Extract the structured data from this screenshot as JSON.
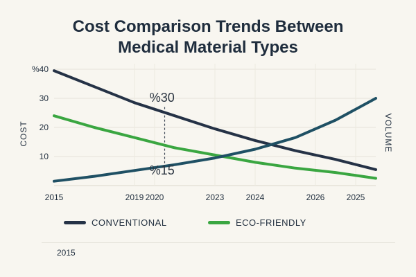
{
  "chart_data": {
    "type": "line",
    "title_lines": [
      "Cost Comparison Trends Between",
      "Medical Material Types"
    ],
    "ylabel": "COST",
    "ylabel_right": "VOLUME",
    "y_ticks": [
      {
        "value": 40,
        "label": "%40"
      },
      {
        "value": 30,
        "label": "30"
      },
      {
        "value": 20,
        "label": "20"
      },
      {
        "value": 10,
        "label": "10"
      }
    ],
    "ylim": [
      0,
      40
    ],
    "x_tick_labels": [
      "2015",
      "2019",
      "2020",
      "2023",
      "2024",
      "2026",
      "2025"
    ],
    "x_tick_positions": [
      0,
      4,
      5,
      8,
      10,
      13,
      15
    ],
    "xlim": [
      0,
      16
    ],
    "series": [
      {
        "name": "CONVENTIONAL",
        "color": "#253246",
        "x": [
          0,
          2,
          4,
          6,
          8,
          10,
          12,
          14,
          16
        ],
        "values": [
          39.5,
          34.0,
          28.5,
          24.0,
          19.5,
          15.5,
          12.0,
          9.0,
          5.5
        ]
      },
      {
        "name": "ECO-FRIENDLY",
        "color": "#3aa641",
        "x": [
          0,
          2,
          4,
          6,
          8,
          10,
          12,
          14,
          16
        ],
        "values": [
          24.0,
          20.0,
          16.5,
          13.0,
          10.5,
          8.0,
          6.0,
          4.5,
          2.5
        ]
      },
      {
        "name": "VOLUME",
        "color": "#1f5064",
        "x": [
          0,
          2,
          4,
          6,
          8,
          10,
          12,
          14,
          16
        ],
        "values": [
          1.5,
          3.2,
          5.2,
          7.2,
          9.5,
          12.5,
          16.5,
          22.5,
          30.0
        ]
      }
    ],
    "annotations": [
      {
        "text": "%30",
        "x": 5.3,
        "y": 30
      },
      {
        "text": "%15",
        "x": 5.3,
        "y": 5
      }
    ],
    "annotation_line_x": 5.5
  },
  "legend": [
    {
      "label": "CONVENTIONAL",
      "color": "#253246"
    },
    {
      "label": "ECO-FRIENDLY",
      "color": "#3aa641"
    }
  ],
  "footer": {
    "label": "2015"
  }
}
